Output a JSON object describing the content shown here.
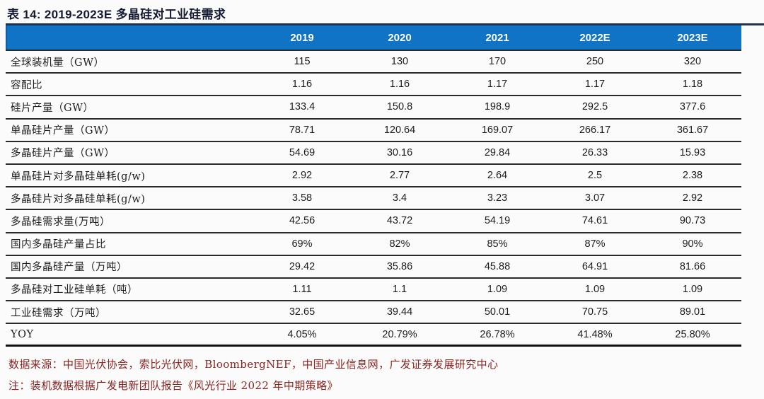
{
  "title": "表 14:  2019-2023E 多晶硅对工业硅需求",
  "chart_data": {
    "type": "table",
    "title": "表 14: 2019-2023E 多晶硅对工业硅需求",
    "columns": [
      "2019",
      "2020",
      "2021",
      "2022E",
      "2023E"
    ],
    "rows": [
      {
        "label": "全球装机量（GW）",
        "values": [
          "115",
          "130",
          "170",
          "250",
          "320"
        ]
      },
      {
        "label": "容配比",
        "values": [
          "1.16",
          "1.16",
          "1.17",
          "1.17",
          "1.18"
        ]
      },
      {
        "label": "硅片产量（GW）",
        "values": [
          "133.4",
          "150.8",
          "198.9",
          "292.5",
          "377.6"
        ]
      },
      {
        "label": "单晶硅片产量（GW）",
        "values": [
          "78.71",
          "120.64",
          "169.07",
          "266.17",
          "361.67"
        ]
      },
      {
        "label": "多晶硅片产量（GW）",
        "values": [
          "54.69",
          "30.16",
          "29.84",
          "26.33",
          "15.93"
        ]
      },
      {
        "label": "单晶硅片对多晶硅单耗(g/w)",
        "values": [
          "2.92",
          "2.77",
          "2.64",
          "2.5",
          "2.38"
        ]
      },
      {
        "label": "多晶硅片对多晶硅单耗(g/w)",
        "values": [
          "3.58",
          "3.4",
          "3.23",
          "3.07",
          "2.92"
        ]
      },
      {
        "label": "多晶硅需求量(万吨）",
        "values": [
          "42.56",
          "43.72",
          "54.19",
          "74.61",
          "90.73"
        ]
      },
      {
        "label": "国内多晶硅产量占比",
        "values": [
          "69%",
          "82%",
          "85%",
          "87%",
          "90%"
        ]
      },
      {
        "label": "国内多晶硅产量（万吨）",
        "values": [
          "29.42",
          "35.86",
          "45.88",
          "64.91",
          "81.66"
        ]
      },
      {
        "label": "多晶硅对工业硅单耗（吨）",
        "values": [
          "1.11",
          "1.1",
          "1.09",
          "1.09",
          "1.09"
        ]
      },
      {
        "label": "工业硅需求（万吨）",
        "values": [
          "32.65",
          "39.44",
          "50.01",
          "70.75",
          "89.01"
        ]
      },
      {
        "label": "YOY",
        "values": [
          "4.05%",
          "20.79%",
          "26.78%",
          "41.48%",
          "25.80%"
        ]
      }
    ]
  },
  "footnotes": {
    "source": "数据来源：中国光伏协会，索比光伏网，BloombergNEF，中国产业信息网，广发证券发展研究中心",
    "note": "注：装机数据根据广发电新团队报告《风光行业 2022 年中期策略》"
  },
  "colors": {
    "header_bg": "#1173c4",
    "header_text": "#ffffff",
    "title_text": "#151a33",
    "rule_navy": "#1d3156",
    "row_separator": "#2a2a2a",
    "footnote_text": "#8b2420"
  }
}
